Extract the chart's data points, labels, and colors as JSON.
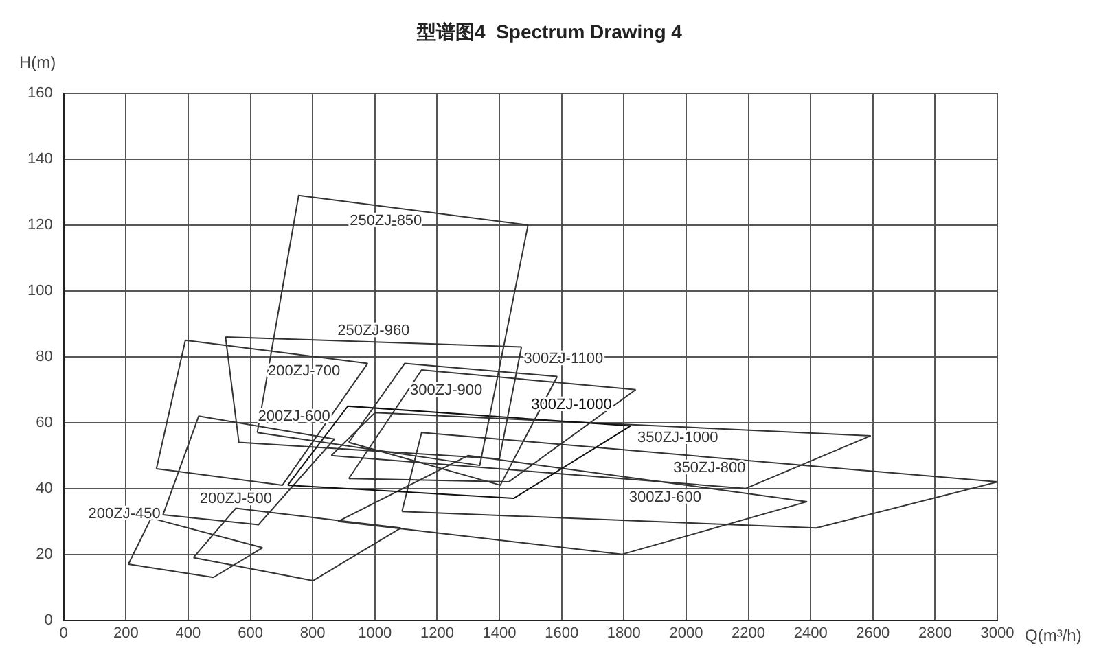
{
  "chart_data": {
    "type": "line",
    "title": "型谱图4  Spectrum Drawing 4",
    "xlabel": "Q(m³/h)",
    "ylabel": "H(m)",
    "xlim": [
      0,
      3000
    ],
    "ylim": [
      0,
      160
    ],
    "xticks": [
      0,
      200,
      400,
      600,
      800,
      1000,
      1200,
      1400,
      1600,
      1800,
      2000,
      2200,
      2400,
      2600,
      2800,
      3000
    ],
    "yticks": [
      0,
      20,
      40,
      60,
      80,
      100,
      120,
      140,
      160
    ],
    "grid": true,
    "legend": false,
    "marker": "none",
    "line_style": "solid",
    "series": [
      {
        "name": "250ZJ-850",
        "color": "#333333",
        "x": [
          622,
          755,
          1492
        ],
        "values": [
          57,
          129,
          120
        ]
      },
      {
        "color": "#333333",
        "x": [
          622,
          1337,
          1492
        ],
        "values": [
          57,
          47,
          120
        ]
      },
      {
        "name": "200ZJ-700",
        "color": "#333333",
        "x": [
          298,
          391,
          977
        ],
        "values": [
          46,
          85,
          78
        ]
      },
      {
        "color": "#333333",
        "x": [
          298,
          703,
          977
        ],
        "values": [
          46,
          41,
          78
        ]
      },
      {
        "name": "250ZJ-960",
        "color": "#333333",
        "x": [
          520,
          1471
        ],
        "values": [
          86,
          83
        ]
      },
      {
        "color": "#333333",
        "x": [
          520,
          563,
          1400,
          1471
        ],
        "values": [
          86,
          54,
          49,
          83
        ]
      },
      {
        "name": "300ZJ-1100",
        "color": "#333333",
        "x": [
          916,
          1096,
          1586
        ],
        "values": [
          54,
          78,
          74
        ]
      },
      {
        "color": "#333333",
        "x": [
          916,
          1403,
          1586
        ],
        "values": [
          54,
          41,
          74
        ]
      },
      {
        "name": "300ZJ-900",
        "color": "#333333",
        "x": [
          916,
          1150,
          1838
        ],
        "values": [
          43,
          76,
          70
        ]
      },
      {
        "color": "#333333",
        "x": [
          916,
          1430,
          1838
        ],
        "values": [
          43,
          42,
          70
        ]
      },
      {
        "name": "300ZJ-1000",
        "color": "#111111",
        "x": [
          720,
          913,
          1821
        ],
        "values": [
          41,
          65,
          59
        ]
      },
      {
        "color": "#111111",
        "x": [
          720,
          1446,
          1821
        ],
        "values": [
          41,
          37,
          59
        ]
      },
      {
        "name": "350ZJ-1000",
        "color": "#333333",
        "x": [
          860,
          1000,
          2593
        ],
        "values": [
          50,
          63,
          56
        ]
      },
      {
        "color": "#333333",
        "x": [
          860,
          2192,
          2593
        ],
        "values": [
          50,
          40,
          56
        ]
      },
      {
        "name": "350ZJ-800",
        "color": "#333333",
        "x": [
          1087,
          1150,
          3000
        ],
        "values": [
          33,
          57,
          42
        ]
      },
      {
        "color": "#333333",
        "x": [
          1087,
          2418,
          3000
        ],
        "values": [
          33,
          28,
          42
        ]
      },
      {
        "name": "300ZJ-600",
        "color": "#333333",
        "x": [
          882,
          1300,
          2389
        ],
        "values": [
          30,
          50,
          36
        ]
      },
      {
        "color": "#333333",
        "x": [
          882,
          1795,
          2389
        ],
        "values": [
          30,
          20,
          36
        ]
      },
      {
        "name": "200ZJ-600",
        "color": "#333333",
        "x": [
          319,
          434,
          870
        ],
        "values": [
          32,
          62,
          55
        ]
      },
      {
        "color": "#333333",
        "x": [
          319,
          626,
          870
        ],
        "values": [
          32,
          29,
          55
        ]
      },
      {
        "name": "200ZJ-500",
        "color": "#333333",
        "x": [
          417,
          553,
          1083
        ],
        "values": [
          19,
          34,
          28
        ]
      },
      {
        "color": "#333333",
        "x": [
          417,
          801,
          1083
        ],
        "values": [
          19,
          12,
          28
        ]
      },
      {
        "name": "200ZJ-450",
        "color": "#333333",
        "x": [
          208,
          281,
          639
        ],
        "values": [
          17,
          31,
          22
        ]
      },
      {
        "color": "#333333",
        "x": [
          208,
          481,
          639
        ],
        "values": [
          17,
          13,
          22
        ]
      }
    ]
  }
}
